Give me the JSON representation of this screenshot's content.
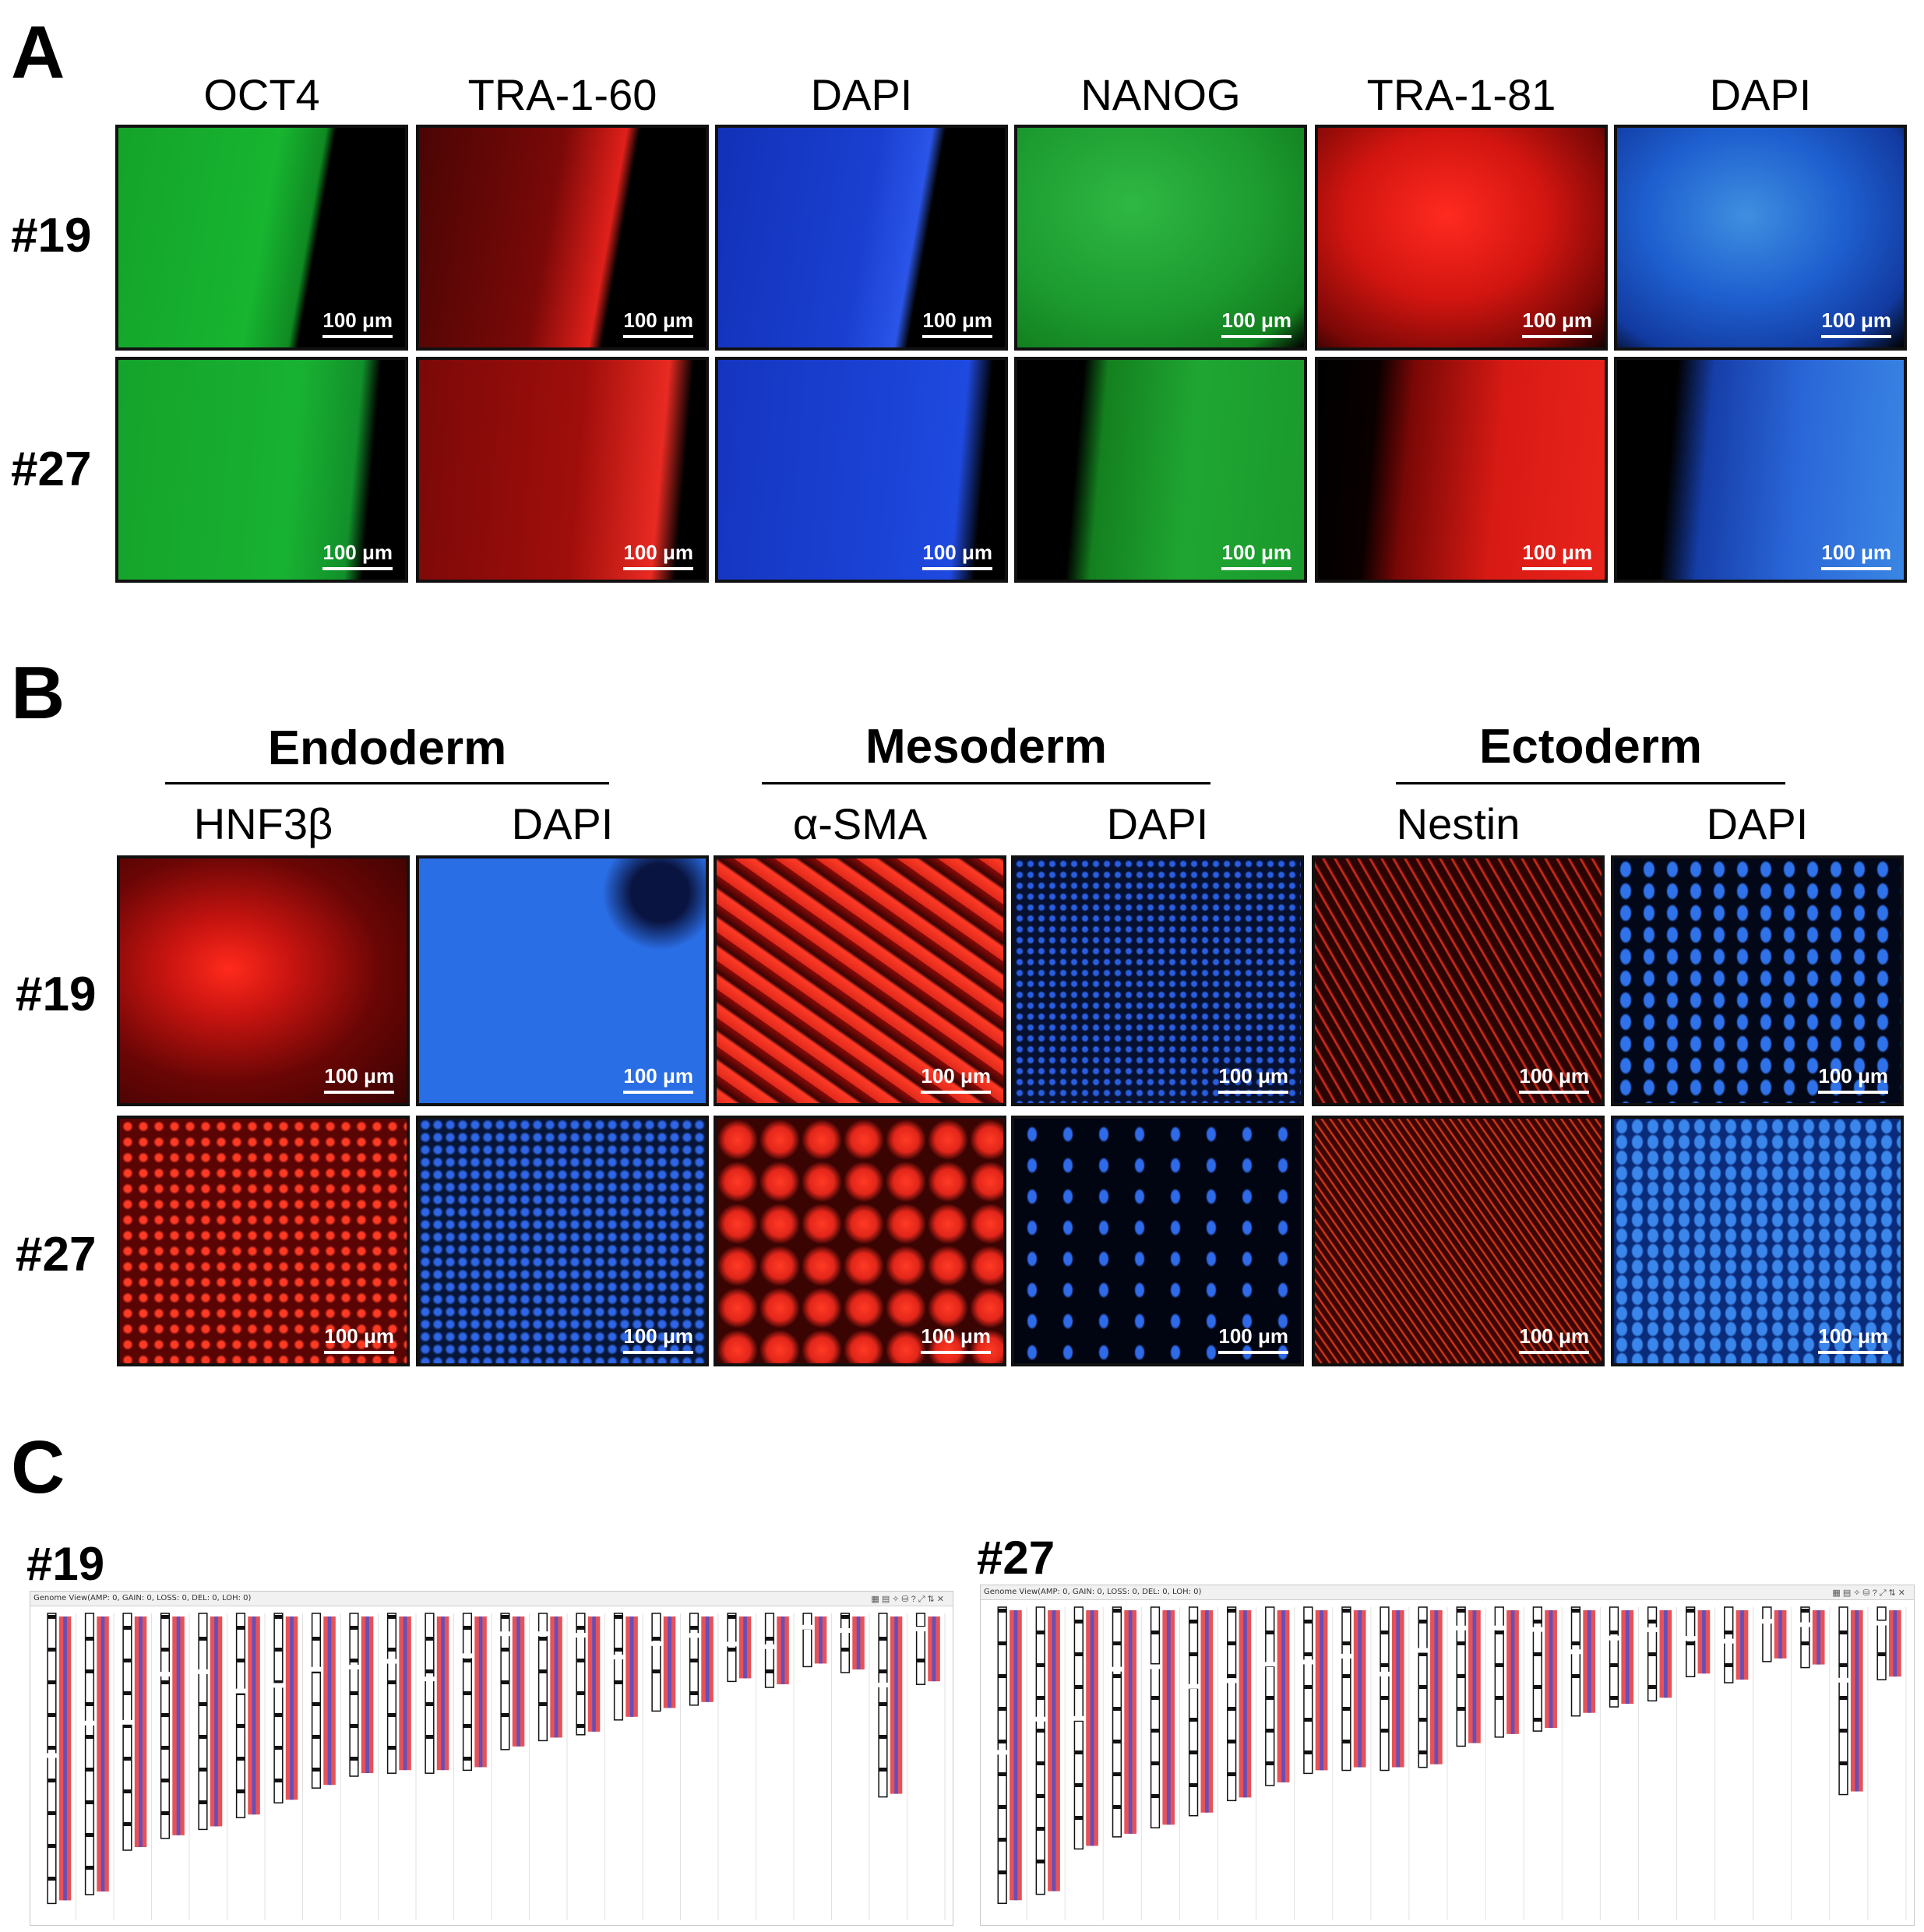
{
  "panelA": {
    "letter": "A",
    "columns": [
      "OCT4",
      "TRA-1-60",
      "DAPI",
      "NANOG",
      "TRA-1-81",
      "DAPI"
    ],
    "rows": [
      "#19",
      "#27"
    ],
    "scale_bar": "100 μm"
  },
  "panelB": {
    "letter": "B",
    "groups": [
      "Endoderm",
      "Mesoderm",
      "Ectoderm"
    ],
    "columns": [
      "HNF3β",
      "DAPI",
      "α-SMA",
      "DAPI",
      "Nestin",
      "DAPI"
    ],
    "rows": [
      "#19",
      "#27"
    ],
    "scale_bar": "100 μm"
  },
  "panelC": {
    "letter": "C",
    "views": [
      {
        "label": "#19",
        "header": "Genome View(AMP: 0, GAIN: 0, LOSS: 0, DEL: 0, LOH: 0)"
      },
      {
        "label": "#27",
        "header": "Genome View(AMP: 0, GAIN: 0, LOSS: 0, DEL: 0, LOH: 0)"
      }
    ]
  }
}
